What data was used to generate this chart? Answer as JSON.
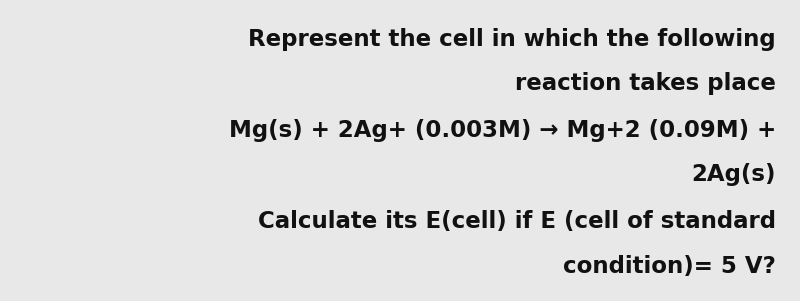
{
  "background_color": "#ffffff",
  "outer_background_color": "#e8e8e8",
  "lines": [
    "Represent the cell in which the following",
    "reaction takes place",
    "Mg(s) + 2Ag+ (0.003M) → Mg+2 (0.09M) +",
    "2Ag(s)",
    "Calculate its E(cell) if E (cell of standard",
    "condition)= 5 V?"
  ],
  "font_size": 16.5,
  "font_weight": "bold",
  "font_family": "DejaVu Sans",
  "text_color": "#111111",
  "fig_width": 8.0,
  "fig_height": 3.01,
  "dpi": 100
}
